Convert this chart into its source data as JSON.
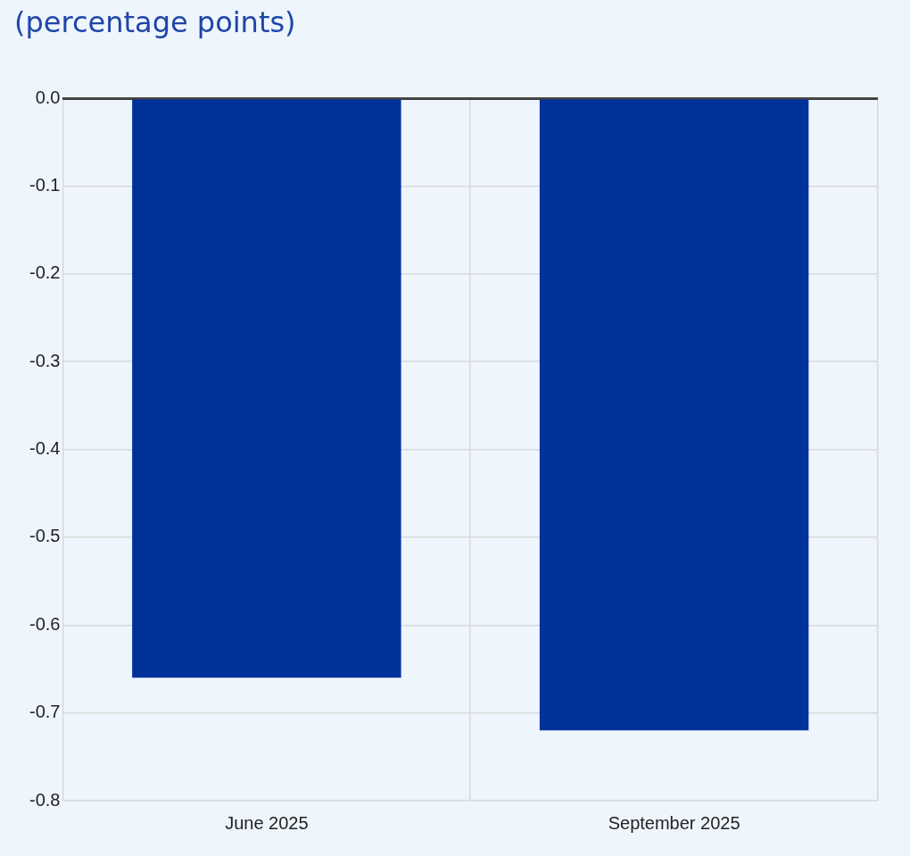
{
  "chart_data": {
    "type": "bar",
    "title": "(percentage points)",
    "categories": [
      "June 2025",
      "September 2025"
    ],
    "values": [
      -0.66,
      -0.72
    ],
    "color": "#003299",
    "ylim": [
      -0.8,
      0
    ],
    "yticks": [
      {
        "value": 0,
        "label": "0.0"
      },
      -0.1,
      -0.2,
      -0.3,
      -0.4,
      -0.5,
      -0.6,
      -0.7,
      -0.8
    ],
    "grid": true
  }
}
